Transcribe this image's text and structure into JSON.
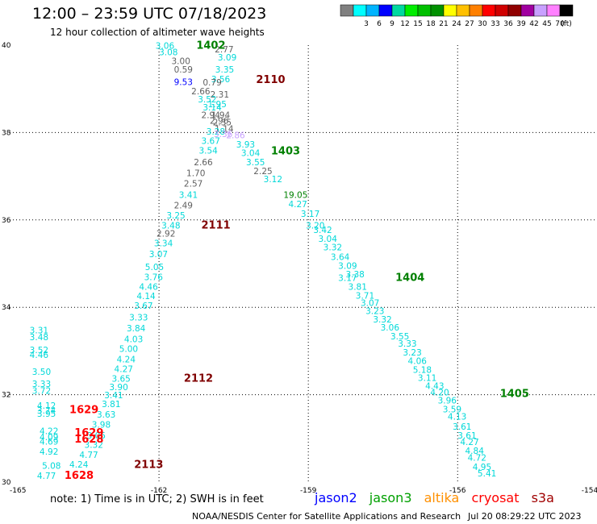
{
  "title": "12:00 – 23:59 UTC 07/18/2023",
  "subtitle": "12 hour collection of altimeter wave heights",
  "legend": {
    "unit": "(ft)",
    "swatches": [
      {
        "label": "",
        "color": "#808080"
      },
      {
        "label": "3",
        "color": "#00ffff"
      },
      {
        "label": "6",
        "color": "#00b4ff"
      },
      {
        "label": "9",
        "color": "#0000ff"
      },
      {
        "label": "12",
        "color": "#00d8a0"
      },
      {
        "label": "15",
        "color": "#00ee00"
      },
      {
        "label": "18",
        "color": "#00c000"
      },
      {
        "label": "21",
        "color": "#009000"
      },
      {
        "label": "24",
        "color": "#ffff00"
      },
      {
        "label": "27",
        "color": "#ffc000"
      },
      {
        "label": "30",
        "color": "#ff8000"
      },
      {
        "label": "33",
        "color": "#ff0000"
      },
      {
        "label": "36",
        "color": "#d00000"
      },
      {
        "label": "39",
        "color": "#900000"
      },
      {
        "label": "42",
        "color": "#a000a0"
      },
      {
        "label": "45",
        "color": "#c8a0ff"
      },
      {
        "label": "70",
        "color": "#ff80ff"
      },
      {
        "label": "",
        "color": "#000000"
      }
    ]
  },
  "map": {
    "lon_range": [
      -165,
      -154
    ],
    "lat_range": [
      30,
      40
    ],
    "lon_ticks": [
      {
        "v": -165,
        "t": "-165"
      },
      {
        "v": -162,
        "t": "-162"
      },
      {
        "v": -159,
        "t": "-159"
      },
      {
        "v": -156,
        "t": "-156"
      },
      {
        "v": -153,
        "t": "-153"
      },
      {
        "v": -154,
        "t": "-154"
      }
    ],
    "lat_ticks": [
      {
        "v": 40,
        "t": "40"
      },
      {
        "v": 38,
        "t": "38"
      },
      {
        "v": 36,
        "t": "36"
      },
      {
        "v": 34,
        "t": "34"
      },
      {
        "v": 32,
        "t": "32"
      },
      {
        "v": 30,
        "t": "30"
      }
    ],
    "grid_lons": [
      -162,
      -159,
      -156,
      -153
    ],
    "grid_lats": [
      38,
      36,
      34,
      32
    ],
    "grid": true
  },
  "colors": {
    "cyan": "#00d8d8",
    "gray": "#606060",
    "blue": "#0000ff",
    "lav": "#c8a0ff",
    "green": "#008000",
    "red": "#ff0000",
    "maroon": "#800000"
  },
  "wave_heights": [
    {
      "lon": -162.07,
      "lat": 39.92,
      "t": "3.06",
      "c": "cyan"
    },
    {
      "lon": -162.0,
      "lat": 39.77,
      "t": "3.08",
      "c": "cyan"
    },
    {
      "lon": -161.75,
      "lat": 39.57,
      "t": "3.00",
      "c": "gray"
    },
    {
      "lon": -161.7,
      "lat": 39.37,
      "t": "0.59",
      "c": "gray"
    },
    {
      "lon": -160.88,
      "lat": 39.83,
      "t": "2.77",
      "c": "gray"
    },
    {
      "lon": -160.82,
      "lat": 39.65,
      "t": "3.09",
      "c": "cyan"
    },
    {
      "lon": -160.87,
      "lat": 39.37,
      "t": "3.35",
      "c": "cyan"
    },
    {
      "lon": -160.95,
      "lat": 39.15,
      "t": "3.56",
      "c": "cyan"
    },
    {
      "lon": -161.12,
      "lat": 39.08,
      "t": "0.79",
      "c": "gray"
    },
    {
      "lon": -161.7,
      "lat": 39.09,
      "t": "9.53",
      "c": "blue"
    },
    {
      "lon": -161.35,
      "lat": 38.87,
      "t": "2.66",
      "c": "gray"
    },
    {
      "lon": -160.97,
      "lat": 38.8,
      "t": "2.31",
      "c": "gray"
    },
    {
      "lon": -161.22,
      "lat": 38.69,
      "t": "3.52",
      "c": "cyan"
    },
    {
      "lon": -161.02,
      "lat": 38.58,
      "t": "1.95",
      "c": "cyan"
    },
    {
      "lon": -161.12,
      "lat": 38.51,
      "t": "3.14",
      "c": "cyan"
    },
    {
      "lon": -161.15,
      "lat": 38.33,
      "t": "2.94",
      "c": "gray"
    },
    {
      "lon": -160.95,
      "lat": 38.33,
      "t": "1.94",
      "c": "gray"
    },
    {
      "lon": -160.98,
      "lat": 38.2,
      "t": "2.96",
      "c": "gray"
    },
    {
      "lon": -160.92,
      "lat": 38.16,
      "t": "2.35",
      "c": "gray"
    },
    {
      "lon": -160.88,
      "lat": 38.02,
      "t": "1.14",
      "c": "gray"
    },
    {
      "lon": -161.05,
      "lat": 37.95,
      "t": "3.28",
      "c": "cyan"
    },
    {
      "lon": -160.9,
      "lat": 37.9,
      "t": "3.36",
      "c": "lav"
    },
    {
      "lon": -160.65,
      "lat": 37.87,
      "t": "2.86",
      "c": "lav"
    },
    {
      "lon": -161.15,
      "lat": 37.74,
      "t": "3.67",
      "c": "cyan"
    },
    {
      "lon": -160.45,
      "lat": 37.66,
      "t": "3.93",
      "c": "cyan"
    },
    {
      "lon": -161.2,
      "lat": 37.52,
      "t": "3.54",
      "c": "cyan"
    },
    {
      "lon": -160.35,
      "lat": 37.46,
      "t": "3.04",
      "c": "cyan"
    },
    {
      "lon": -161.3,
      "lat": 37.25,
      "t": "2.66",
      "c": "gray"
    },
    {
      "lon": -160.25,
      "lat": 37.25,
      "t": "3.55",
      "c": "cyan"
    },
    {
      "lon": -161.45,
      "lat": 37.0,
      "t": "1.70",
      "c": "gray"
    },
    {
      "lon": -160.1,
      "lat": 37.05,
      "t": "2.25",
      "c": "gray"
    },
    {
      "lon": -161.5,
      "lat": 36.76,
      "t": "2.57",
      "c": "gray"
    },
    {
      "lon": -159.9,
      "lat": 36.86,
      "t": "3.12",
      "c": "cyan"
    },
    {
      "lon": -161.6,
      "lat": 36.5,
      "t": "3.41",
      "c": "cyan"
    },
    {
      "lon": -159.5,
      "lat": 36.5,
      "t": "19.05",
      "c": "green"
    },
    {
      "lon": -161.7,
      "lat": 36.26,
      "t": "2.49",
      "c": "gray"
    },
    {
      "lon": -159.4,
      "lat": 36.29,
      "t": "4.27",
      "c": "cyan"
    },
    {
      "lon": -161.85,
      "lat": 36.03,
      "t": "3.25",
      "c": "cyan"
    },
    {
      "lon": -159.15,
      "lat": 36.07,
      "t": "3.17",
      "c": "cyan"
    },
    {
      "lon": -161.95,
      "lat": 35.8,
      "t": "3.48",
      "c": "cyan"
    },
    {
      "lon": -159.05,
      "lat": 35.8,
      "t": "3.20",
      "c": "cyan"
    },
    {
      "lon": -162.05,
      "lat": 35.62,
      "t": "2.92",
      "c": "gray"
    },
    {
      "lon": -158.9,
      "lat": 35.7,
      "t": "3.42",
      "c": "cyan"
    },
    {
      "lon": -158.8,
      "lat": 35.5,
      "t": "3.04",
      "c": "cyan"
    },
    {
      "lon": -162.1,
      "lat": 35.4,
      "t": "3.34",
      "c": "cyan"
    },
    {
      "lon": -158.7,
      "lat": 35.3,
      "t": "3.32",
      "c": "cyan"
    },
    {
      "lon": -162.2,
      "lat": 35.15,
      "t": "3.07",
      "c": "cyan"
    },
    {
      "lon": -158.55,
      "lat": 35.08,
      "t": "3.64",
      "c": "cyan"
    },
    {
      "lon": -158.4,
      "lat": 34.88,
      "t": "3.09",
      "c": "cyan"
    },
    {
      "lon": -162.28,
      "lat": 34.85,
      "t": "5.05",
      "c": "cyan"
    },
    {
      "lon": -158.25,
      "lat": 34.69,
      "t": "3.38",
      "c": "cyan"
    },
    {
      "lon": -162.3,
      "lat": 34.62,
      "t": "3.76",
      "c": "cyan"
    },
    {
      "lon": -158.4,
      "lat": 34.6,
      "t": "3.17",
      "c": "cyan"
    },
    {
      "lon": -162.4,
      "lat": 34.4,
      "t": "4.46",
      "c": "cyan"
    },
    {
      "lon": -158.2,
      "lat": 34.4,
      "t": "3.81",
      "c": "cyan"
    },
    {
      "lon": -162.45,
      "lat": 34.19,
      "t": "4.14",
      "c": "cyan"
    },
    {
      "lon": -158.05,
      "lat": 34.2,
      "t": "3.71",
      "c": "cyan"
    },
    {
      "lon": -162.5,
      "lat": 33.97,
      "t": "3.67",
      "c": "cyan"
    },
    {
      "lon": -157.95,
      "lat": 34.03,
      "t": "3.07",
      "c": "cyan"
    },
    {
      "lon": -157.85,
      "lat": 33.85,
      "t": "3.23",
      "c": "cyan"
    },
    {
      "lon": -162.6,
      "lat": 33.7,
      "t": "3.33",
      "c": "cyan"
    },
    {
      "lon": -157.7,
      "lat": 33.65,
      "t": "3.32",
      "c": "cyan"
    },
    {
      "lon": -162.65,
      "lat": 33.45,
      "t": "3.84",
      "c": "cyan"
    },
    {
      "lon": -157.55,
      "lat": 33.47,
      "t": "3.06",
      "c": "cyan"
    },
    {
      "lon": -162.7,
      "lat": 33.2,
      "t": "4.03",
      "c": "cyan"
    },
    {
      "lon": -157.35,
      "lat": 33.27,
      "t": "3.55",
      "c": "cyan"
    },
    {
      "lon": -162.8,
      "lat": 32.98,
      "t": "5.00",
      "c": "cyan"
    },
    {
      "lon": -157.2,
      "lat": 33.1,
      "t": "3.33",
      "c": "cyan"
    },
    {
      "lon": -157.1,
      "lat": 32.9,
      "t": "3.23",
      "c": "cyan"
    },
    {
      "lon": -162.85,
      "lat": 32.74,
      "t": "4.24",
      "c": "cyan"
    },
    {
      "lon": -157.0,
      "lat": 32.7,
      "t": "4.06",
      "c": "cyan"
    },
    {
      "lon": -162.9,
      "lat": 32.52,
      "t": "4.27",
      "c": "cyan"
    },
    {
      "lon": -156.9,
      "lat": 32.5,
      "t": "5.18",
      "c": "cyan"
    },
    {
      "lon": -162.95,
      "lat": 32.3,
      "t": "3.65",
      "c": "cyan"
    },
    {
      "lon": -156.8,
      "lat": 32.32,
      "t": "3.11",
      "c": "cyan"
    },
    {
      "lon": -163.0,
      "lat": 32.1,
      "t": "3.90",
      "c": "cyan"
    },
    {
      "lon": -156.65,
      "lat": 32.13,
      "t": "4.43",
      "c": "cyan"
    },
    {
      "lon": -156.55,
      "lat": 31.98,
      "t": "4.20",
      "c": "cyan"
    },
    {
      "lon": -163.1,
      "lat": 31.92,
      "t": "3.41",
      "c": "cyan"
    },
    {
      "lon": -156.4,
      "lat": 31.8,
      "t": "3.96",
      "c": "cyan"
    },
    {
      "lon": -163.15,
      "lat": 31.72,
      "t": "3.81",
      "c": "cyan"
    },
    {
      "lon": -156.3,
      "lat": 31.6,
      "t": "3.59",
      "c": "cyan"
    },
    {
      "lon": -163.25,
      "lat": 31.48,
      "t": "3.63",
      "c": "cyan"
    },
    {
      "lon": -156.2,
      "lat": 31.43,
      "t": "4.13",
      "c": "cyan"
    },
    {
      "lon": -163.35,
      "lat": 31.25,
      "t": "3.98",
      "c": "cyan"
    },
    {
      "lon": -156.1,
      "lat": 31.2,
      "t": "3.61",
      "c": "cyan"
    },
    {
      "lon": -163.45,
      "lat": 31.0,
      "t": "3.05",
      "c": "cyan"
    },
    {
      "lon": -156.0,
      "lat": 31.0,
      "t": "3.61",
      "c": "cyan"
    },
    {
      "lon": -155.95,
      "lat": 30.85,
      "t": "4.27",
      "c": "cyan"
    },
    {
      "lon": -163.5,
      "lat": 30.78,
      "t": "3.32",
      "c": "cyan"
    },
    {
      "lon": -155.85,
      "lat": 30.65,
      "t": "4.84",
      "c": "cyan"
    },
    {
      "lon": -163.6,
      "lat": 30.55,
      "t": "4.77",
      "c": "cyan"
    },
    {
      "lon": -155.8,
      "lat": 30.49,
      "t": "4.72",
      "c": "cyan"
    },
    {
      "lon": -163.8,
      "lat": 30.33,
      "t": "4.24",
      "c": "cyan"
    },
    {
      "lon": -155.7,
      "lat": 30.28,
      "t": "4.95",
      "c": "cyan"
    },
    {
      "lon": -155.6,
      "lat": 30.13,
      "t": "5.41",
      "c": "cyan"
    },
    {
      "lon": -164.6,
      "lat": 33.4,
      "t": "3.31",
      "c": "cyan"
    },
    {
      "lon": -164.6,
      "lat": 33.25,
      "t": "3.48",
      "c": "cyan"
    },
    {
      "lon": -164.6,
      "lat": 32.95,
      "t": "3.52",
      "c": "cyan"
    },
    {
      "lon": -164.6,
      "lat": 32.84,
      "t": "4.46",
      "c": "cyan"
    },
    {
      "lon": -164.55,
      "lat": 32.45,
      "t": "3.50",
      "c": "cyan"
    },
    {
      "lon": -164.55,
      "lat": 32.18,
      "t": "3.33",
      "c": "cyan"
    },
    {
      "lon": -164.55,
      "lat": 32.02,
      "t": "3.72",
      "c": "cyan"
    },
    {
      "lon": -164.45,
      "lat": 31.68,
      "t": "4.12",
      "c": "cyan"
    },
    {
      "lon": -164.45,
      "lat": 31.57,
      "t": "3.74",
      "c": "cyan"
    },
    {
      "lon": -164.45,
      "lat": 31.49,
      "t": "3.95",
      "c": "cyan"
    },
    {
      "lon": -164.4,
      "lat": 31.1,
      "t": "4.22",
      "c": "cyan"
    },
    {
      "lon": -164.4,
      "lat": 30.96,
      "t": "4.09",
      "c": "cyan"
    },
    {
      "lon": -164.4,
      "lat": 30.86,
      "t": "4.69",
      "c": "cyan"
    },
    {
      "lon": -164.4,
      "lat": 30.63,
      "t": "4.92",
      "c": "cyan"
    },
    {
      "lon": -164.35,
      "lat": 30.3,
      "t": "5.08",
      "c": "cyan"
    },
    {
      "lon": -164.45,
      "lat": 30.07,
      "t": "4.77",
      "c": "cyan"
    }
  ],
  "pass_labels": [
    {
      "lon": -161.25,
      "lat": 39.92,
      "t": "1402",
      "c": "green"
    },
    {
      "lon": -160.05,
      "lat": 39.13,
      "t": "2110",
      "c": "maroon"
    },
    {
      "lon": -159.75,
      "lat": 37.5,
      "t": "1403",
      "c": "green"
    },
    {
      "lon": -161.15,
      "lat": 35.8,
      "t": "2111",
      "c": "maroon"
    },
    {
      "lon": -157.25,
      "lat": 34.6,
      "t": "1404",
      "c": "green"
    },
    {
      "lon": -161.5,
      "lat": 32.3,
      "t": "2112",
      "c": "maroon"
    },
    {
      "lon": -155.15,
      "lat": 31.95,
      "t": "1405",
      "c": "green"
    },
    {
      "lon": -163.8,
      "lat": 31.58,
      "t": "1629",
      "c": "red"
    },
    {
      "lon": -163.7,
      "lat": 31.05,
      "t": "1629",
      "c": "red"
    },
    {
      "lon": -163.7,
      "lat": 30.9,
      "t": "1628",
      "c": "red"
    },
    {
      "lon": -162.5,
      "lat": 30.32,
      "t": "2113",
      "c": "maroon"
    },
    {
      "lon": -163.9,
      "lat": 30.07,
      "t": "1628",
      "c": "red"
    }
  ],
  "footer": {
    "note": "note:  1) Time is in UTC;  2) SWH is in feet",
    "satellites": [
      {
        "name": "jason2",
        "color": "#0000ff"
      },
      {
        "name": "jason3",
        "color": "#00a000"
      },
      {
        "name": "altika",
        "color": "#ff9000"
      },
      {
        "name": "cryosat",
        "color": "#ff0000"
      },
      {
        "name": "s3a",
        "color": "#a00000"
      }
    ],
    "credit": "NOAA/NESDIS Center for Satellite Applications and Research",
    "timestamp": "Jul 20 08:29:22 UTC 2023"
  }
}
